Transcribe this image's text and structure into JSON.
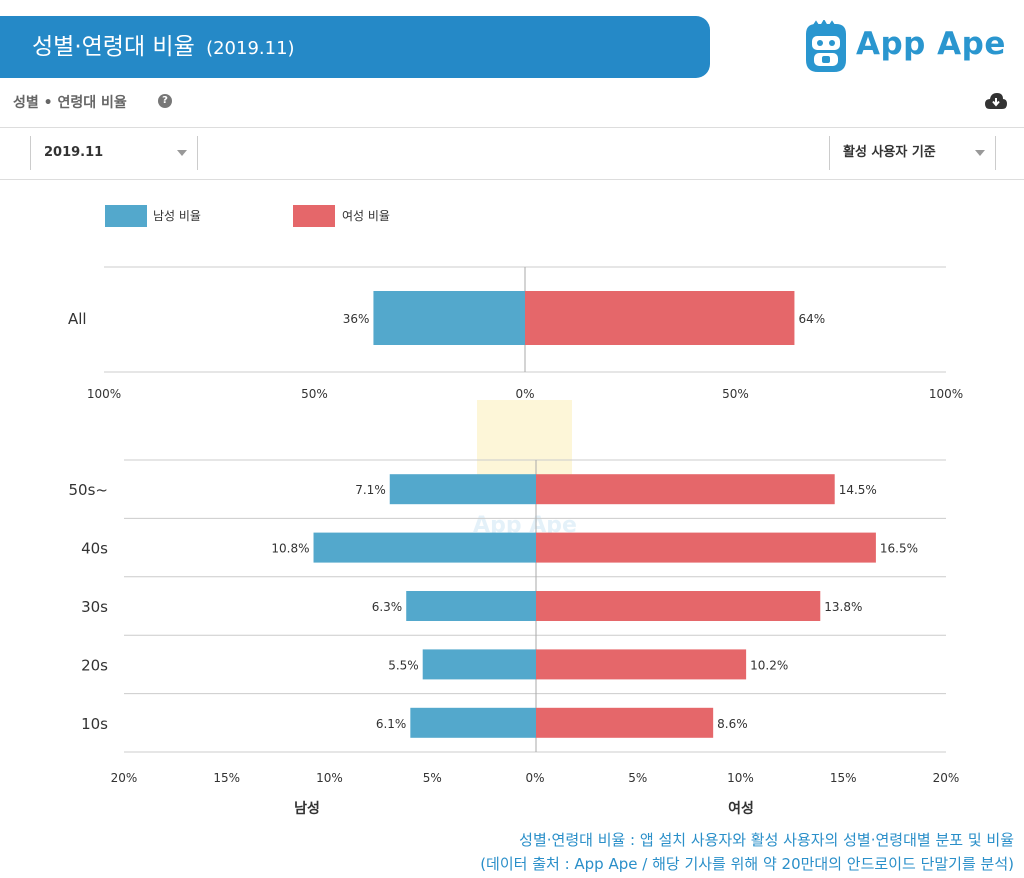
{
  "banner": {
    "title": "성별·연령대 비율",
    "period": "(2019.11)"
  },
  "logo": {
    "text": "App Ape"
  },
  "section": {
    "title": "성별 • 연령대 비율",
    "help_icon": "question-circle-icon",
    "download_icon": "cloud-download-icon"
  },
  "filters": {
    "period": "2019.11",
    "basis": "활성 사용자 기준"
  },
  "colors": {
    "male": "#53a8cc",
    "female": "#e5676a",
    "banner": "#2589c7",
    "caption": "#2a8fc9"
  },
  "chart_data": [
    {
      "type": "bar",
      "orientation": "horizontal-diverging",
      "legend": [
        "남성 비율",
        "여성 비율"
      ],
      "categories": [
        "All"
      ],
      "series": [
        {
          "name": "남성 비율",
          "values": [
            36
          ],
          "labels": [
            "36%"
          ]
        },
        {
          "name": "여성 비율",
          "values": [
            64
          ],
          "labels": [
            "64%"
          ]
        }
      ],
      "xlim": [
        -100,
        100
      ],
      "xticks": [
        "100%",
        "50%",
        "0%",
        "50%",
        "100%"
      ]
    },
    {
      "type": "bar",
      "orientation": "horizontal-diverging",
      "categories": [
        "50s~",
        "40s",
        "30s",
        "20s",
        "10s"
      ],
      "series": [
        {
          "name": "남성 비율",
          "values": [
            7.1,
            10.8,
            6.3,
            5.5,
            6.1
          ],
          "labels": [
            "7.1%",
            "10.8%",
            "6.3%",
            "5.5%",
            "6.1%"
          ]
        },
        {
          "name": "여성 비율",
          "values": [
            14.5,
            16.5,
            13.8,
            10.2,
            8.6
          ],
          "labels": [
            "14.5%",
            "16.5%",
            "13.8%",
            "10.2%",
            "8.6%"
          ]
        }
      ],
      "xlim": [
        -20,
        20
      ],
      "xticks": [
        "20%",
        "15%",
        "10%",
        "5%",
        "0%",
        "5%",
        "10%",
        "15%",
        "20%"
      ],
      "xlabel_left": "남성",
      "xlabel_right": "여성"
    }
  ],
  "caption": {
    "line1": "성별·연령대 비율 : 앱 설치 사용자와 활성 사용자의 성별·연령대별 분포 및 비율",
    "line2": "(데이터 출처 : App Ape / 해당 기사를 위해 약 20만대의 안드로이드 단말기를 분석)"
  }
}
